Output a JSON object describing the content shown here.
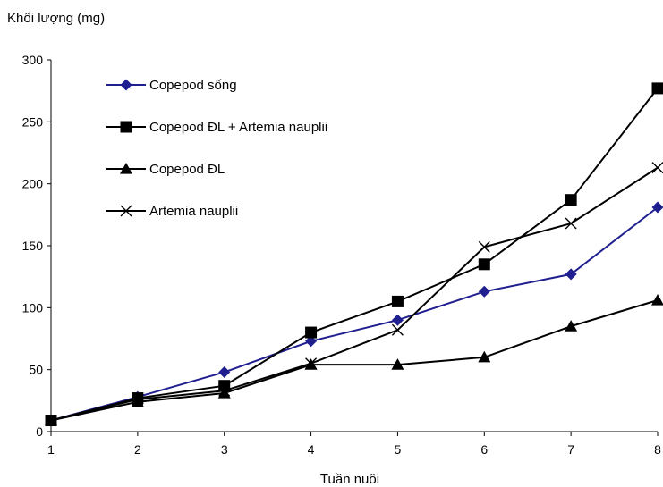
{
  "chart_data": {
    "type": "line",
    "title": "",
    "ylabel": "Khối lượng (mg)",
    "xlabel": "Tuần nuôi",
    "x": [
      1,
      2,
      3,
      4,
      5,
      6,
      7,
      8
    ],
    "xlim": [
      1,
      8
    ],
    "ylim": [
      0,
      300
    ],
    "yticks": [
      0,
      50,
      100,
      150,
      200,
      250,
      300
    ],
    "grid": false,
    "legend_position": "top-left",
    "series": [
      {
        "name": "Copepod sống",
        "marker": "diamond",
        "color": "#1f1f8f",
        "values": [
          9,
          28,
          48,
          73,
          90,
          113,
          127,
          181
        ]
      },
      {
        "name": "Copepod ĐL + Artemia nauplii",
        "marker": "square",
        "color": "#000000",
        "values": [
          9,
          27,
          37,
          80,
          105,
          135,
          187,
          277
        ]
      },
      {
        "name": "Copepod ĐL",
        "marker": "triangle",
        "color": "#000000",
        "values": [
          9,
          24,
          31,
          54,
          54,
          60,
          85,
          106
        ]
      },
      {
        "name": "Artemia nauplii",
        "marker": "x",
        "color": "#000000",
        "values": [
          9,
          26,
          33,
          55,
          82,
          149,
          168,
          213
        ]
      }
    ]
  }
}
